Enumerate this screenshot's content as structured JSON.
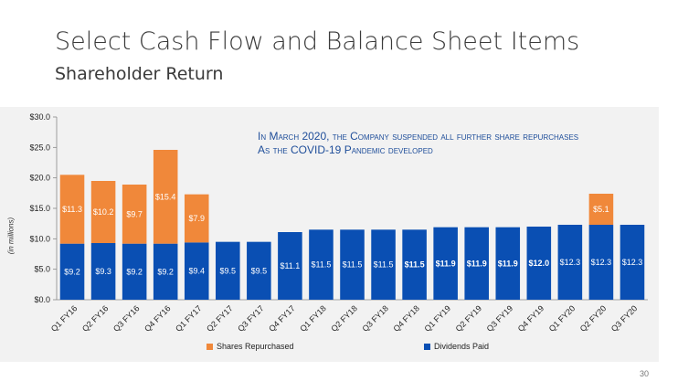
{
  "slide": {
    "title": "Select Cash Flow and Balance Sheet Items",
    "subtitle": "Shareholder Return",
    "page_number": "30"
  },
  "note": {
    "line1": "In March 2020, the Company suspended all further share repurchases",
    "line2": "As the COVID-19 Pandemic developed"
  },
  "colors": {
    "dividends": "#0a4fb3",
    "shares": "#f0883a",
    "note_text": "#1f4e9a"
  },
  "chart_data": {
    "type": "bar",
    "stacked": true,
    "ylabel": "(in millions)",
    "ylim": [
      0,
      30
    ],
    "yticks": [
      0,
      5,
      10,
      15,
      20,
      25,
      30
    ],
    "ytick_labels": [
      "$0.0",
      "$5.0",
      "$10.0",
      "$15.0",
      "$20.0",
      "$25.0",
      "$30.0"
    ],
    "grid": false,
    "legend": "bottom",
    "categories": [
      "Q1 FY16",
      "Q2 FY16",
      "Q3 FY16",
      "Q4 FY16",
      "Q1 FY17",
      "Q2 FY17",
      "Q3 FY17",
      "Q4 FY17",
      "Q1 FY18",
      "Q2 FY18",
      "Q3 FY18",
      "Q4 FY18",
      "Q1 FY19",
      "Q2 FY19",
      "Q3 FY19",
      "Q4 FY19",
      "Q1 FY20",
      "Q2 FY20",
      "Q3 FY20"
    ],
    "series": [
      {
        "name": "Dividends Paid",
        "values": [
          9.2,
          9.3,
          9.2,
          9.2,
          9.4,
          9.5,
          9.5,
          11.1,
          11.5,
          11.5,
          11.5,
          11.5,
          11.9,
          11.9,
          11.9,
          12.0,
          12.3,
          12.3,
          12.3
        ],
        "labels": [
          "$9.2",
          "$9.3",
          "$9.2",
          "$9.2",
          "$9.4",
          "$9.5",
          "$9.5",
          "$11.1",
          "$11.5",
          "$11.5",
          "$11.5",
          "$11.5",
          "$11.9",
          "$11.9",
          "$11.9",
          "$12.0",
          "$12.3",
          "$12.3",
          "$12.3"
        ],
        "bold_labels": [
          11,
          12,
          13,
          14,
          15
        ]
      },
      {
        "name": "Shares Repurchased",
        "values": [
          11.3,
          10.2,
          9.7,
          15.4,
          7.9,
          0,
          0,
          0,
          0,
          0,
          0,
          0,
          0,
          0,
          0,
          0,
          0,
          5.1,
          0
        ],
        "labels": [
          "$11.3",
          "$10.2",
          "$9.7",
          "$15.4",
          "$7.9",
          "",
          "",
          "",
          "",
          "",
          "",
          "",
          "",
          "",
          "",
          "",
          "",
          "$5.1",
          ""
        ]
      }
    ],
    "legend_entries": [
      "Shares Repurchased",
      "Dividends Paid"
    ]
  }
}
